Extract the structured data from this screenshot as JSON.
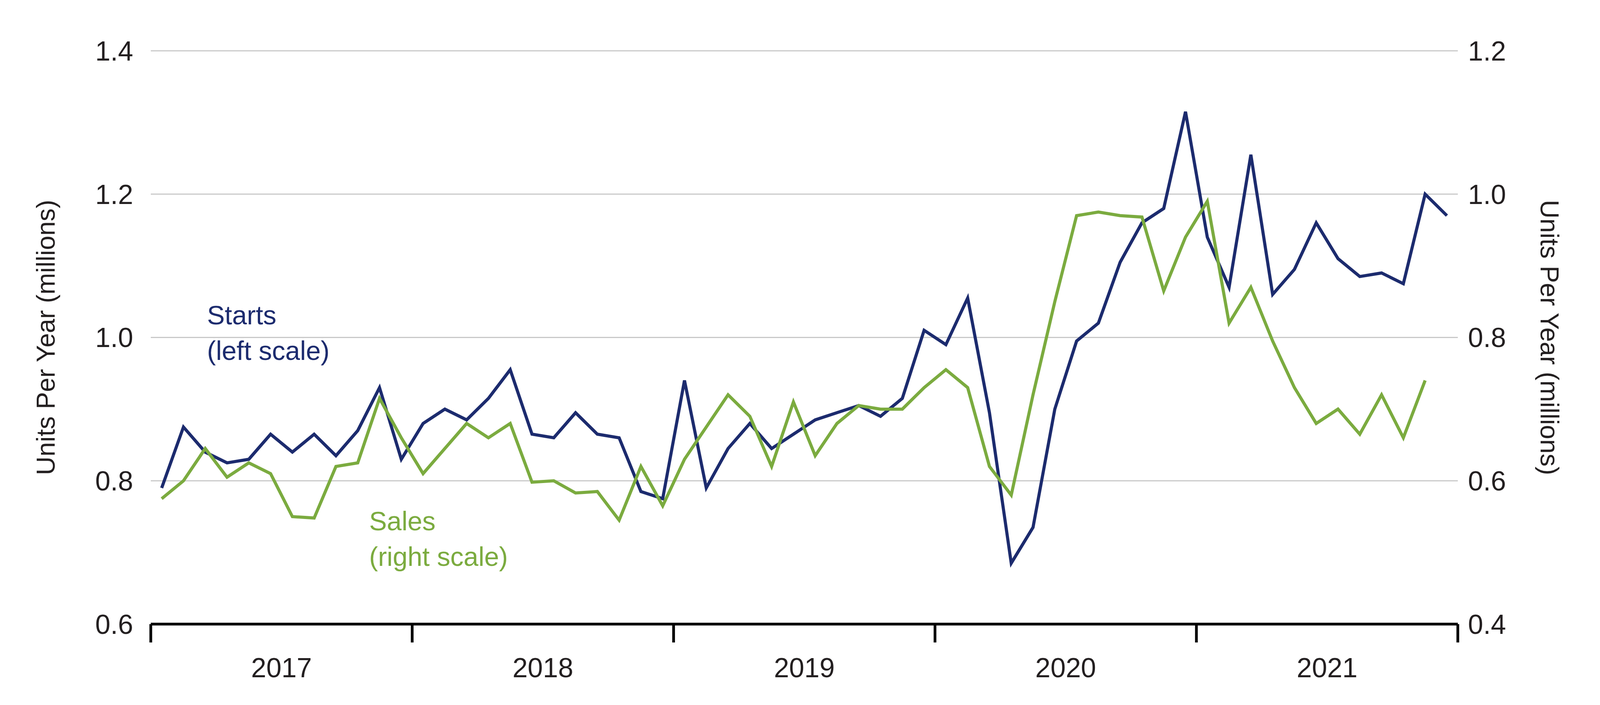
{
  "chart_data": {
    "type": "line",
    "categories": [
      null,
      null,
      null,
      null,
      null,
      "2017",
      null,
      null,
      null,
      null,
      null,
      null,
      null,
      null,
      null,
      null,
      null,
      "2018",
      null,
      null,
      null,
      null,
      null,
      null,
      null,
      null,
      null,
      null,
      null,
      "2019",
      null,
      null,
      null,
      null,
      null,
      null,
      null,
      null,
      null,
      null,
      null,
      "2020",
      null,
      null,
      null,
      null,
      null,
      null,
      null,
      null,
      null,
      null,
      null,
      "2021",
      null,
      null,
      null,
      null,
      null,
      null
    ],
    "series": [
      {
        "name": "Starts",
        "color": "#1c2b6e",
        "values": [
          0.79,
          0.875,
          0.84,
          0.825,
          0.83,
          0.865,
          0.84,
          0.865,
          0.835,
          0.87,
          0.93,
          0.83,
          0.88,
          0.9,
          0.885,
          0.915,
          0.955,
          0.865,
          0.86,
          0.895,
          0.865,
          0.86,
          0.785,
          0.775,
          0.94,
          0.79,
          0.845,
          0.88,
          0.845,
          0.865,
          0.885,
          0.895,
          0.905,
          0.89,
          0.915,
          1.01,
          0.99,
          1.055,
          0.895,
          0.685,
          0.735,
          0.9,
          0.995,
          1.02,
          1.105,
          1.16,
          1.18,
          1.315,
          1.14,
          1.07,
          1.255,
          1.06,
          1.095,
          1.16,
          1.11,
          1.085,
          1.09,
          1.075,
          1.2,
          1.17
        ]
      },
      {
        "name": "Sales",
        "color": "#7bab3f",
        "axis": "y2",
        "values": [
          0.575,
          0.6,
          0.645,
          0.605,
          0.625,
          0.61,
          0.55,
          0.548,
          0.62,
          0.625,
          0.715,
          0.66,
          0.61,
          0.645,
          0.68,
          0.66,
          0.68,
          0.598,
          0.6,
          0.583,
          0.585,
          0.545,
          0.62,
          0.565,
          0.63,
          0.675,
          0.72,
          0.69,
          0.62,
          0.71,
          0.635,
          0.68,
          0.705,
          0.7,
          0.7,
          0.73,
          0.755,
          0.73,
          0.62,
          0.58,
          0.72,
          0.85,
          0.97,
          0.975,
          0.97,
          0.968,
          0.865,
          0.94,
          0.99,
          0.82,
          0.87,
          0.795,
          0.73,
          0.68,
          0.7,
          0.665,
          0.72,
          0.66,
          0.74,
          null
        ]
      }
    ],
    "ylabel": "Units Per Year (millions)",
    "y2label": "Units Per Year (millions)",
    "ylim": [
      0.6,
      1.4
    ],
    "yticks": [
      0.6,
      0.8,
      {
        "value": 1,
        "label": "1.0"
      },
      1.2,
      1.4
    ],
    "y2lim": [
      0.4,
      1.2
    ],
    "y2ticks": [
      0.4,
      0.6,
      0.8,
      {
        "value": 1,
        "label": "1.0"
      },
      1.2
    ],
    "grid": true,
    "annotations": [
      {
        "text": "Starts\n(left scale)",
        "color": "#1c2b6e"
      },
      {
        "text": "Sales\n(right scale)",
        "color": "#7bab3f"
      }
    ]
  }
}
